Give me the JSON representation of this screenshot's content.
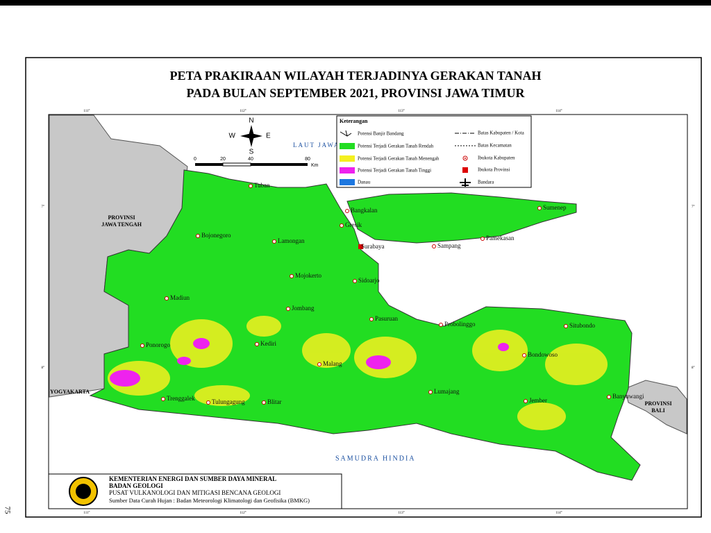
{
  "header": {
    "title": [
      "PETA PRAKIRAAN WILAYAH TERJADINYA GERAKAN TANAH",
      "PADA BULAN SEPTEMBER 2021, PROVINSI JAWA TIMUR"
    ]
  },
  "compass": {
    "n": "N",
    "s": "S",
    "e": "E",
    "w": "W"
  },
  "scale": {
    "ticks": [
      "0",
      "20",
      "40",
      "80"
    ],
    "unit": "Km"
  },
  "graticule": {
    "lon": [
      "111°",
      "112°",
      "113°",
      "114°"
    ],
    "lat": [
      "7°",
      "8°"
    ]
  },
  "legend": {
    "title": "Keterangan",
    "items": [
      "Potensi Banjir Bandang",
      "Potensi Terjadi Gerakan Tanah Rendah",
      "Potensi Terjadi Gerakan Tanah Menengah",
      "Potensi Terjadi Gerakan Tanah Tinggi",
      "Danau"
    ],
    "lines": [
      "Batas Kabupaten / Kota",
      "Batas Kecamatan",
      "Ibukota Kabupaten",
      "Ibukota Provinsi",
      "Bandara"
    ]
  },
  "regions": {
    "sea_north": "LAUT JAWA",
    "sea_south": "SAMUDRA HINDIA",
    "central_java": [
      "PROVINSI",
      "JAWA TENGAH"
    ],
    "bali": [
      "PROVINSI",
      "BALI"
    ],
    "yogyakarta": "YOGYAKARTA"
  },
  "places": [
    "Tuban",
    "Bojonegoro",
    "Lamongan",
    "Gresik",
    "Bangkalan",
    "Surabaya",
    "Sidoarjo",
    "Mojokerto",
    "Jombang",
    "Madiun",
    "Ponorogo",
    "Kediri",
    "Malang",
    "Blitar",
    "Tulungagung",
    "Trenggalek",
    "Pasuruan",
    "Probolinggo",
    "Lumajang",
    "Jember",
    "Bondowoso",
    "Situbondo",
    "Banyuwangi",
    "Sampang",
    "Pamekasan",
    "Sumenep"
  ],
  "footer": {
    "lines": [
      "KEMENTERIAN ENERGI DAN SUMBER DAYA MINERAL",
      "BADAN GEOLOGI",
      "PUSAT VULKANOLOGI DAN MITIGASI BENCANA GEOLOGI",
      "Sumber Data Curah Hujan : Badan Meteorologi Klimatologi dan Geofisika (BMKG)"
    ]
  },
  "page_number": "75"
}
